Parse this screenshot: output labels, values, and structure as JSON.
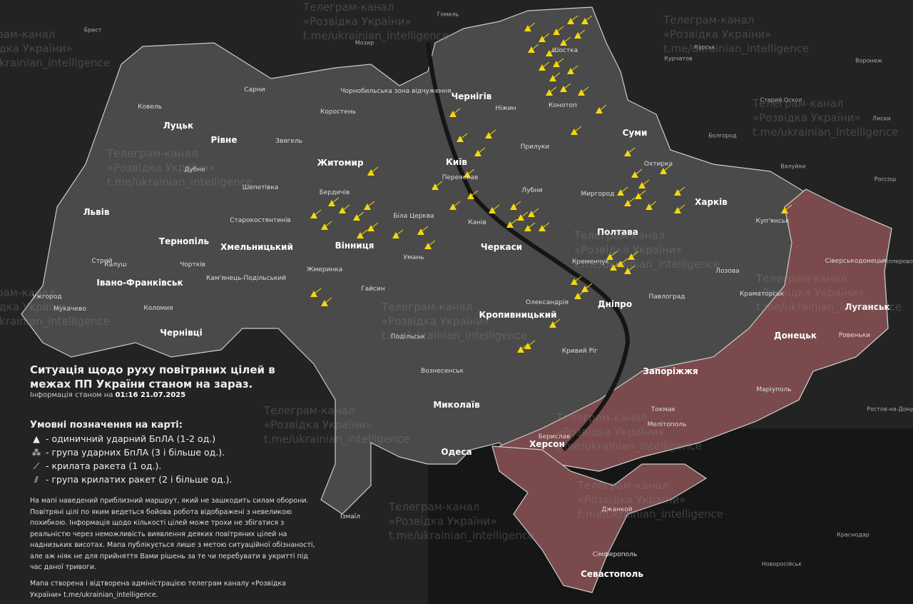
{
  "colors": {
    "background": "#232323",
    "territory": "#4a4a4a",
    "occupied": "#7a4a4c",
    "drone": "#f5d90a",
    "borders": "#dddddd"
  },
  "title": "Ситуація щодо руху повітряних цілей в межах ПП України станом на зараз.",
  "info": {
    "prefix": "Інформація станом на",
    "datetime": "01:16 21.07.2025"
  },
  "legend": {
    "heading": "Умовні позначення на карті:",
    "items": [
      {
        "icon": "single-drone-icon",
        "symbol": "▲",
        "label": "- одиничний ударний БпЛА (1-2 од.)"
      },
      {
        "icon": "drone-group-icon",
        "symbol": "⁂",
        "label": "- група ударних БпЛА (3 і більше од.)."
      },
      {
        "icon": "cruise-missile-icon",
        "symbol": "⟋",
        "label": "- крилата ракета (1 од.)."
      },
      {
        "icon": "cruise-missile-group-icon",
        "symbol": "⫽",
        "label": "- група крилатих ракет (2 і більше од.)."
      }
    ]
  },
  "disclaimer": "На мапі наведений приблизний маршрут, який не зашкодить силам оборони. Повітряні цілі по яким ведеться бойова робота відображені з невеликою похибкою. Інформація щодо кількості цілей може трохи не збігатися з реальністю через неможливість виявлення деяких повітряних цілей на наднизьких висотах. Мапа публікується лише з метою ситуаційної обізнаності, але аж ніяк не для прийняття Вами рішень за те чи перебувати в укритті під час даної тривоги.",
  "credit": "Мапа створена і відтворена адміністрацією телеграм каналу «Розвідка України» t.me/ukrainian_intelligence.",
  "watermark": {
    "line1": "Телеграм-канал",
    "line2": "«Розвідка України»",
    "line3": "t.me/ukrainian_intelligence"
  },
  "cities_major": [
    "Київ",
    "Луцьк",
    "Рівне",
    "Житомир",
    "Чернігів",
    "Суми",
    "Харків",
    "Полтава",
    "Львів",
    "Тернопіль",
    "Хмельницький",
    "Вінниця",
    "Черкаси",
    "Івано-Франківськ",
    "Чернівці",
    "Кропивницький",
    "Дніпро",
    "Луганськ",
    "Донецьк",
    "Запоріжжя",
    "Миколаїв",
    "Херсон",
    "Одеса",
    "Севастополь"
  ],
  "cities_minor": [
    "Ковель",
    "Сарни",
    "Коростень",
    "Звягель",
    "Дубно",
    "Шепетівка",
    "Бердичів",
    "Біла Церква",
    "Переяслав",
    "Ніжин",
    "Прилуки",
    "Конотоп",
    "Шостка",
    "Охтирка",
    "Лубни",
    "Миргород",
    "Канів",
    "Умань",
    "Гайсин",
    "Жмеринка",
    "Старокостянтинів",
    "Кам'янець-Подільський",
    "Чортків",
    "Стрий",
    "Калуш",
    "Коломия",
    "Мукачево",
    "Ужгород",
    "Кременчук",
    "Олександрія",
    "Кривий Ріг",
    "Павлоград",
    "Лозова",
    "Краматорськ",
    "Сіверськодонецьк",
    "Куп'янськ",
    "Ровеньки",
    "Маріуполь",
    "Токмак",
    "Мелітополь",
    "Берислав",
    "Вознесенськ",
    "Подільськ",
    "Ізмаїл",
    "Джанкой",
    "Сімферополь",
    "Чорнобильська зона відчуження"
  ],
  "cities_foreign": [
    "Брест",
    "Гомель",
    "Мозир",
    "Курськ",
    "Курчатов",
    "Воронеж",
    "Старий Оскол",
    "Лиски",
    "Бєлгород",
    "Валуйки",
    "Россош",
    "Міллерово",
    "Ростов-на-Дону",
    "Краснодар",
    "Новоросійськ"
  ]
}
